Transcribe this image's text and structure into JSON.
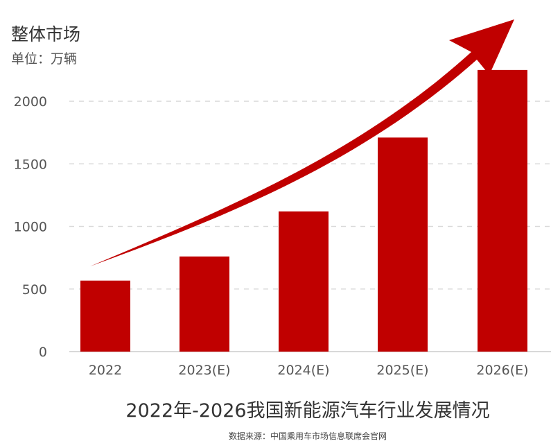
{
  "header": {
    "title": "整体市场",
    "unit": "单位：万辆"
  },
  "footer": {
    "title": "2022年-2026我国新能源汽车行业发展情况",
    "source": "数据来源：中国乘用车市场信息联席会官网"
  },
  "colors": {
    "bar": "#c00000",
    "arrow": "#c00000",
    "grid": "#d9d9d9",
    "axis_text": "#555555"
  },
  "chart_data": {
    "type": "bar",
    "title": "2022年-2026我国新能源汽车行业发展情况",
    "xlabel": "",
    "ylabel": "单位：万辆",
    "categories": [
      "2022",
      "2023(E)",
      "2024(E)",
      "2025(E)",
      "2026(E)"
    ],
    "values": [
      567,
      760,
      1120,
      1710,
      2250
    ],
    "ylim": [
      0,
      2300
    ],
    "yticks": [
      0,
      500,
      1000,
      1500,
      2000
    ],
    "grid": true,
    "annotation": "upward-trend-arrow"
  }
}
